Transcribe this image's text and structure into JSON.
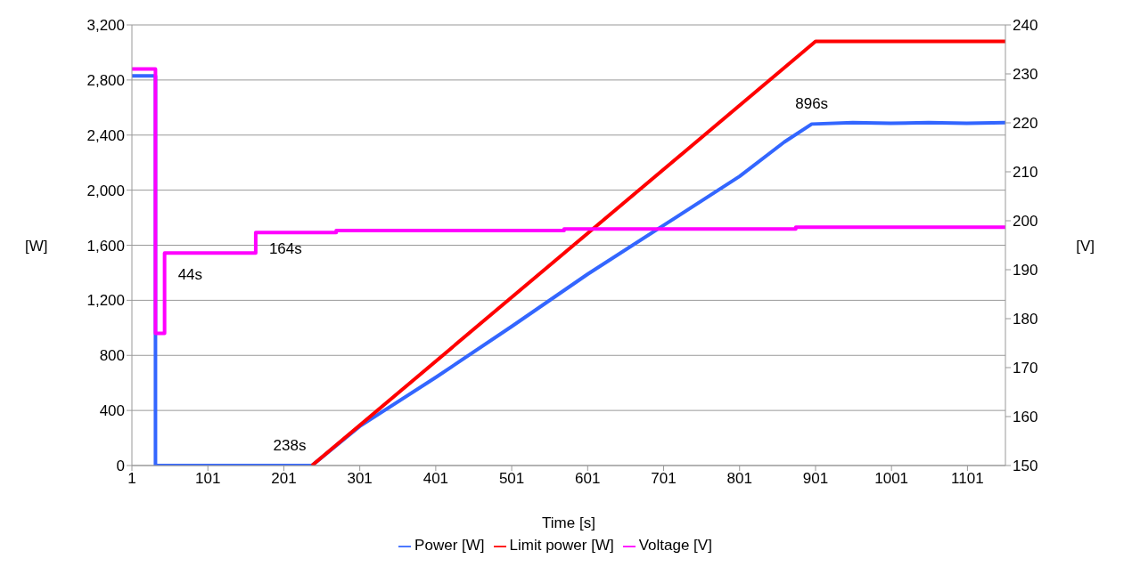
{
  "chart_data": {
    "type": "line",
    "xlabel": "Time [s]",
    "ylabel": "[W]",
    "y2label": "[V]",
    "xlim": [
      1,
      1151
    ],
    "xticks": [
      1,
      101,
      201,
      301,
      401,
      501,
      601,
      701,
      801,
      901,
      1001,
      1101
    ],
    "ylim": [
      0,
      3200
    ],
    "yticks": [
      {
        "value": 0,
        "label": "0"
      },
      {
        "value": 400,
        "label": "400"
      },
      {
        "value": 800,
        "label": "800"
      },
      {
        "value": 1200,
        "label": "1,200"
      },
      {
        "value": 1600,
        "label": "1,600"
      },
      {
        "value": 2000,
        "label": "2,000"
      },
      {
        "value": 2400,
        "label": "2,400"
      },
      {
        "value": 2800,
        "label": "2,800"
      },
      {
        "value": 3200,
        "label": "3,200"
      }
    ],
    "y2lim": [
      150,
      240
    ],
    "y2ticks": [
      150,
      160,
      170,
      180,
      190,
      200,
      210,
      220,
      230,
      240
    ],
    "grid": "y",
    "legend": "bottom",
    "marker": "none",
    "line_style": "solid",
    "series": [
      {
        "name": "Power [W]",
        "color": "#3366ff",
        "x": [
          1,
          32,
          32,
          238,
          301,
          401,
          501,
          601,
          701,
          801,
          860,
          896,
          950,
          1000,
          1050,
          1100,
          1151
        ],
        "values": [
          2830,
          2830,
          0,
          0,
          285,
          640,
          1010,
          1390,
          1745,
          2100,
          2350,
          2480,
          2490,
          2485,
          2490,
          2485,
          2490
        ]
      },
      {
        "name": "Limit power [W]",
        "color": "#ff0000",
        "x": [
          238,
          901,
          1151
        ],
        "values": [
          0,
          3080,
          3080
        ]
      },
      {
        "name": "Voltage [V]",
        "color": "#ff00ff",
        "type": "step",
        "axis": "y2",
        "x": [
          1,
          32,
          44,
          164,
          270,
          570,
          875,
          1151
        ],
        "values": [
          231,
          177,
          193.4,
          197.6,
          198,
          198.3,
          198.7,
          198.7
        ]
      }
    ],
    "annotations": [
      {
        "text": "44s",
        "x": 44,
        "y": 1540
      },
      {
        "text": "164s",
        "x": 164,
        "y": 1690
      },
      {
        "text": "238s",
        "x": 238,
        "y": 0
      },
      {
        "text": "896s",
        "x": 896,
        "y": 2480
      }
    ]
  }
}
